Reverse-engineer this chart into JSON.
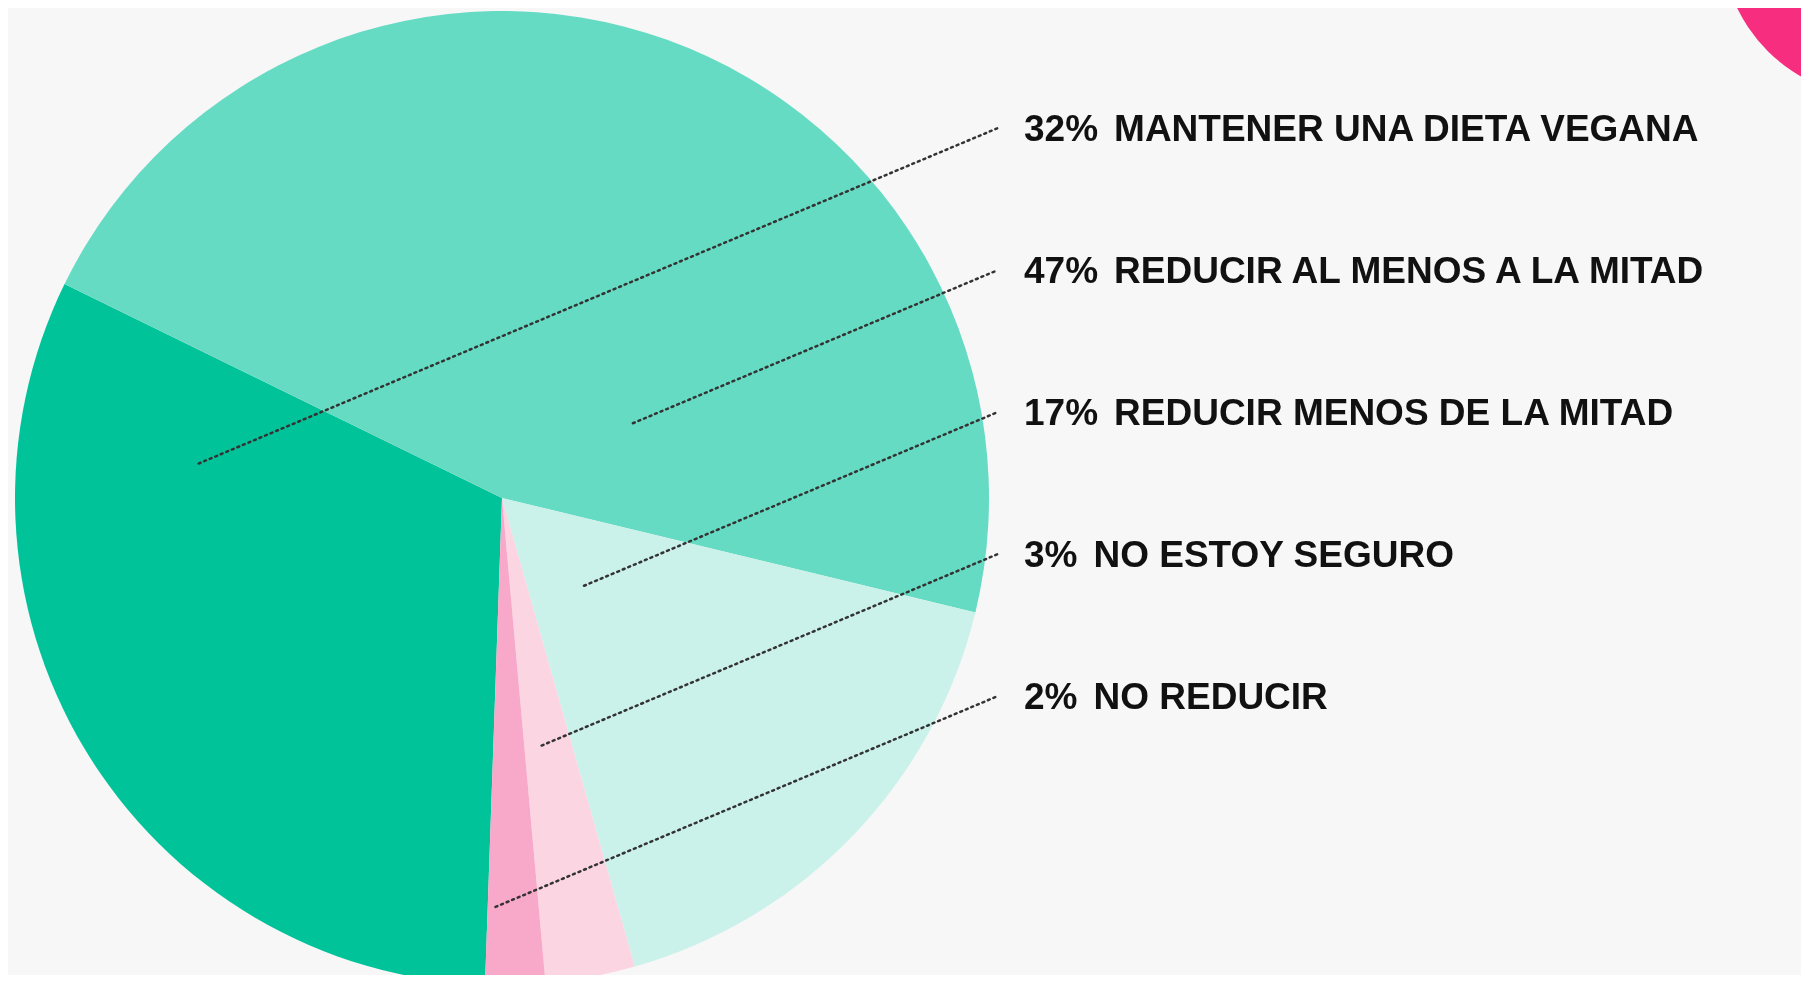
{
  "chart_data": {
    "type": "pie",
    "categories": [
      "MANTENER UNA DIETA VEGANA",
      "REDUCIR AL MENOS A LA MITAD",
      "REDUCIR MENOS DE LA MITAD",
      "NO ESTOY SEGURO",
      "NO REDUCIR"
    ],
    "values": [
      32,
      47,
      17,
      3,
      2
    ],
    "value_labels": [
      "32%",
      "47%",
      "17%",
      "3%",
      "2%"
    ],
    "colors": [
      "#00c39a",
      "#66dbc3",
      "#cbf2ea",
      "#fcd5e3",
      "#f8a8c8"
    ]
  }
}
